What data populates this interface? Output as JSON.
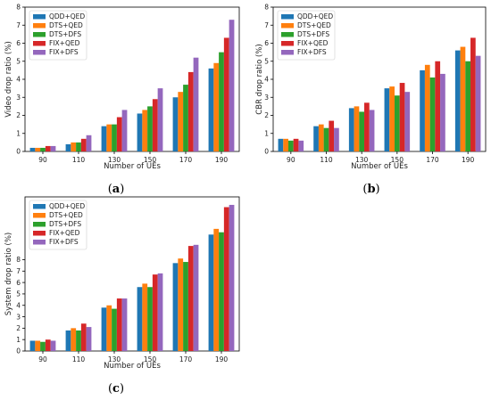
{
  "colors": {
    "qdd_qed": "#1f77b4",
    "dts_qed": "#ff7f0e",
    "dts_dfs": "#2ca02c",
    "fix_qed": "#d62728",
    "fix_dfs": "#9467bd"
  },
  "chart_data": [
    {
      "panel": "(a)",
      "panel_letter": "a",
      "type": "bar",
      "xlabel": "Number of UEs",
      "ylabel": "Video drop ratio (%)",
      "categories": [
        "90",
        "110",
        "130",
        "150",
        "170",
        "190"
      ],
      "ylim": [
        0,
        8
      ],
      "yticks": [
        "0",
        "1",
        "2",
        "3",
        "4",
        "5",
        "6",
        "7",
        "8"
      ],
      "legend_position": "top-left",
      "series": [
        {
          "name": "QDD+QED",
          "values": [
            0.2,
            0.4,
            1.4,
            2.1,
            3.0,
            4.6
          ]
        },
        {
          "name": "DTS+QED",
          "values": [
            0.2,
            0.5,
            1.5,
            2.3,
            3.3,
            4.9
          ]
        },
        {
          "name": "DTS+DFS",
          "values": [
            0.2,
            0.5,
            1.5,
            2.5,
            3.7,
            5.5
          ]
        },
        {
          "name": "FIX+QED",
          "values": [
            0.3,
            0.7,
            1.9,
            2.9,
            4.4,
            6.3
          ]
        },
        {
          "name": "FIX+DFS",
          "values": [
            0.3,
            0.9,
            2.3,
            3.5,
            5.2,
            7.3
          ]
        }
      ]
    },
    {
      "panel": "(b)",
      "panel_letter": "b",
      "type": "bar",
      "xlabel": "Number of UEs",
      "ylabel": "CBR drop ratio (%)",
      "categories": [
        "90",
        "110",
        "130",
        "150",
        "170",
        "190"
      ],
      "ylim": [
        0,
        8
      ],
      "yticks": [
        "0",
        "1",
        "2",
        "3",
        "4",
        "5",
        "6",
        "7",
        "8"
      ],
      "legend_position": "top-left",
      "series": [
        {
          "name": "QDD+QED",
          "values": [
            0.7,
            1.4,
            2.4,
            3.5,
            4.5,
            5.6
          ]
        },
        {
          "name": "DTS+QED",
          "values": [
            0.7,
            1.5,
            2.5,
            3.6,
            4.8,
            5.8
          ]
        },
        {
          "name": "DTS+DFS",
          "values": [
            0.6,
            1.3,
            2.2,
            3.1,
            4.1,
            5.0
          ]
        },
        {
          "name": "FIX+QED",
          "values": [
            0.7,
            1.7,
            2.7,
            3.8,
            5.0,
            6.3
          ]
        },
        {
          "name": "FIX+DFS",
          "values": [
            0.6,
            1.3,
            2.3,
            3.3,
            4.3,
            5.3
          ]
        }
      ]
    },
    {
      "panel": "(c)",
      "panel_letter": "c",
      "type": "bar",
      "xlabel": "Number of UEs",
      "ylabel": "System drop ratio (%)",
      "categories": [
        "90",
        "110",
        "130",
        "150",
        "170",
        "190"
      ],
      "ylim": [
        0,
        13.5
      ],
      "yticks": [
        "0",
        "1",
        "2",
        "3",
        "4",
        "5",
        "6",
        "7",
        "8"
      ],
      "legend_position": "top-left",
      "series": [
        {
          "name": "QDD+QED",
          "values": [
            0.9,
            1.8,
            3.8,
            5.6,
            7.7,
            10.2
          ]
        },
        {
          "name": "DTS+QED",
          "values": [
            0.9,
            2.0,
            4.0,
            5.9,
            8.1,
            10.7
          ]
        },
        {
          "name": "DTS+DFS",
          "values": [
            0.8,
            1.8,
            3.7,
            5.6,
            7.8,
            10.4
          ]
        },
        {
          "name": "FIX+QED",
          "values": [
            1.0,
            2.4,
            4.6,
            6.7,
            9.2,
            12.6
          ]
        },
        {
          "name": "FIX+DFS",
          "values": [
            0.9,
            2.1,
            4.6,
            6.8,
            9.3,
            12.8
          ]
        }
      ]
    }
  ]
}
